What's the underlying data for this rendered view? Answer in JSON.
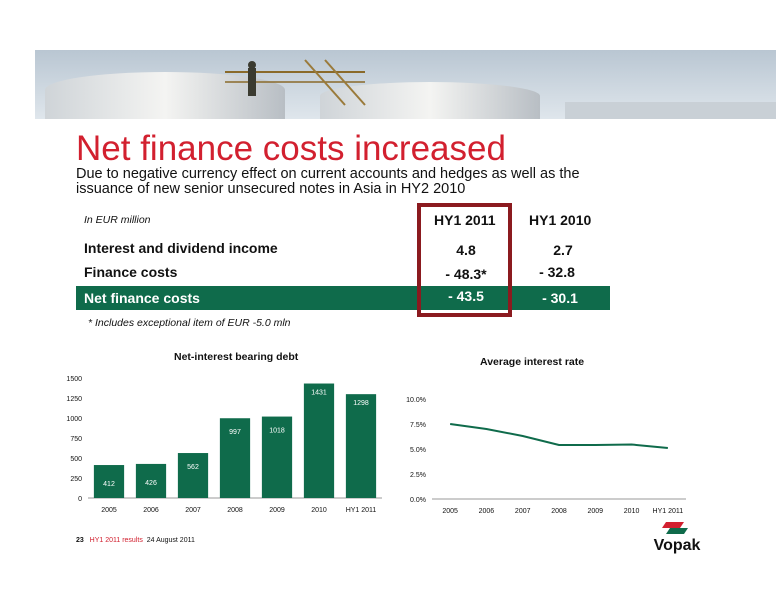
{
  "header": {
    "title": "Net finance costs increased",
    "subtitle": "Due to negative currency effect on current accounts and hedges as well as the issuance of new senior unsecured notes in Asia in HY2 2010"
  },
  "table": {
    "unit_note": "In EUR million",
    "columns": [
      "HY1 2011",
      "HY1 2010"
    ],
    "rows": [
      {
        "label": "Interest and dividend income",
        "values": [
          "4.8",
          "2.7"
        ]
      },
      {
        "label": "Finance costs",
        "values": [
          "- 48.3*",
          "- 32.8"
        ]
      },
      {
        "label": "Net finance costs",
        "values": [
          "- 43.5",
          "- 30.1"
        ]
      }
    ],
    "footnote": "* Includes exceptional item of EUR -5.0 mln"
  },
  "chart_data": [
    {
      "type": "bar",
      "title": "Net-interest bearing debt",
      "categories": [
        "2005",
        "2006",
        "2007",
        "2008",
        "2009",
        "2010",
        "HY1 2011"
      ],
      "values": [
        412,
        426,
        562,
        997,
        1018,
        1431,
        1298
      ],
      "yticks": [
        "0",
        "250",
        "500",
        "750",
        "1000",
        "1250",
        "1500"
      ],
      "ylim": [
        0,
        1500
      ],
      "color": "#0f6b4b"
    },
    {
      "type": "line",
      "title": "Average interest rate",
      "categories": [
        "2005",
        "2006",
        "2007",
        "2008",
        "2009",
        "2010",
        "HY1 2011"
      ],
      "values": [
        7.5,
        7.0,
        6.3,
        5.4,
        5.4,
        5.45,
        5.1
      ],
      "yticks": [
        "0.0%",
        "2.5%",
        "5.0%",
        "7.5%",
        "10.0%"
      ],
      "ylim": [
        0,
        10
      ],
      "color": "#0f6b4b"
    }
  ],
  "footer": {
    "page": "23",
    "label": "HY1 2011 results",
    "date": "24 August 2011"
  },
  "logo": {
    "text": "Vopak"
  },
  "colors": {
    "accent": "#d2202f",
    "brand_green": "#0f6b4b",
    "highlight": "#8b1a1f"
  }
}
